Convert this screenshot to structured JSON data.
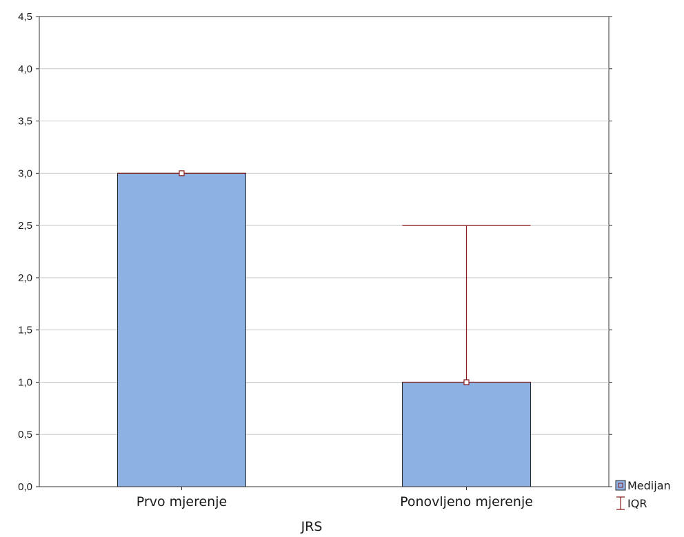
{
  "chart_data": {
    "type": "bar",
    "xlabel": "JRS",
    "ylabel": "",
    "ylim": [
      0,
      4.5
    ],
    "yticks": [
      0,
      0.5,
      1,
      1.5,
      2,
      2.5,
      3,
      3.5,
      4,
      4.5
    ],
    "ytick_labels": [
      "0,0",
      "0,5",
      "1,0",
      "1,5",
      "2,0",
      "2,5",
      "3,0",
      "3,5",
      "4,0",
      "4,5"
    ],
    "grid": true,
    "legend_position": "bottom-right",
    "categories": [
      "Prvo mjerenje",
      "Ponovljeno mjerenje"
    ],
    "series": [
      {
        "name": "Medijan",
        "values": [
          3.0,
          1.0
        ]
      }
    ],
    "error_bars": {
      "name": "IQR",
      "ranges": [
        [
          3.0,
          3.0
        ],
        [
          1.0,
          2.5
        ]
      ]
    },
    "colors": {
      "bar_fill": "#8db1e2",
      "bar_stroke": "#2a2a2a",
      "error": "#8b1a1a",
      "grid": "#c8c8c8"
    }
  }
}
